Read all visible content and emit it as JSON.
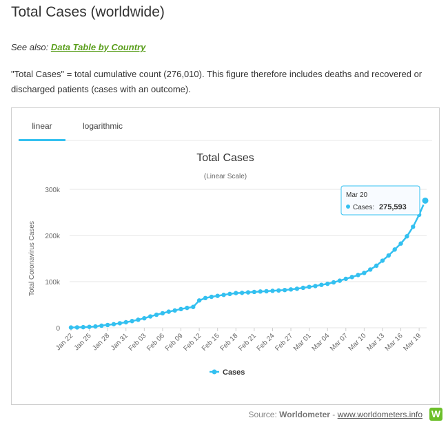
{
  "page": {
    "title": "Total Cases (worldwide)",
    "see_also_prefix": "See also:",
    "see_also_link": "Data Table by Country",
    "description": "\"Total Cases\" = total cumulative count (276,010). This figure therefore includes deaths and recovered or discharged patients (cases with an outcome)."
  },
  "tabs": [
    {
      "label": "linear",
      "active": true
    },
    {
      "label": "logarithmic",
      "active": false
    }
  ],
  "source": {
    "prefix": "Source:",
    "name": "Worldometer",
    "separator": "-",
    "link": "www.worldometers.info",
    "logo_letter": "W"
  },
  "colors": {
    "series": "#33c0f0",
    "link_green": "#5a9e1c",
    "grid": "#e6e6e6"
  },
  "chart_data": {
    "type": "line",
    "title": "Total Cases",
    "subtitle": "(Linear Scale)",
    "ylabel": "Total Coronavirus Cases",
    "xlabel": "",
    "ylim": [
      0,
      300000
    ],
    "yticks": [
      0,
      100000,
      200000,
      300000
    ],
    "ytick_labels": [
      "0",
      "100k",
      "200k",
      "300k"
    ],
    "grid": true,
    "legend_position": "bottom-center",
    "x_tick_labels": [
      "Jan 22",
      "Jan 25",
      "Jan 28",
      "Jan 31",
      "Feb 03",
      "Feb 06",
      "Feb 09",
      "Feb 12",
      "Feb 15",
      "Feb 18",
      "Feb 21",
      "Feb 24",
      "Feb 27",
      "Mar 01",
      "Mar 04",
      "Mar 07",
      "Mar 10",
      "Mar 13",
      "Mar 16",
      "Mar 19"
    ],
    "x": [
      "Jan 22",
      "Jan 23",
      "Jan 24",
      "Jan 25",
      "Jan 26",
      "Jan 27",
      "Jan 28",
      "Jan 29",
      "Jan 30",
      "Jan 31",
      "Feb 01",
      "Feb 02",
      "Feb 03",
      "Feb 04",
      "Feb 05",
      "Feb 06",
      "Feb 07",
      "Feb 08",
      "Feb 09",
      "Feb 10",
      "Feb 11",
      "Feb 12",
      "Feb 13",
      "Feb 14",
      "Feb 15",
      "Feb 16",
      "Feb 17",
      "Feb 18",
      "Feb 19",
      "Feb 20",
      "Feb 21",
      "Feb 22",
      "Feb 23",
      "Feb 24",
      "Feb 25",
      "Feb 26",
      "Feb 27",
      "Feb 28",
      "Feb 29",
      "Mar 01",
      "Mar 02",
      "Mar 03",
      "Mar 04",
      "Mar 05",
      "Mar 06",
      "Mar 07",
      "Mar 08",
      "Mar 09",
      "Mar 10",
      "Mar 11",
      "Mar 12",
      "Mar 13",
      "Mar 14",
      "Mar 15",
      "Mar 16",
      "Mar 17",
      "Mar 18",
      "Mar 19",
      "Mar 20"
    ],
    "series": [
      {
        "name": "Cases",
        "values": [
          580,
          845,
          1317,
          2015,
          2800,
          4581,
          6058,
          7813,
          9821,
          11948,
          14551,
          17389,
          20628,
          24553,
          28276,
          31439,
          34876,
          37552,
          40553,
          43099,
          45134,
          59287,
          64438,
          67100,
          69197,
          71329,
          73332,
          75184,
          75700,
          76677,
          77673,
          78651,
          79205,
          80087,
          80828,
          81820,
          83112,
          84615,
          86604,
          88585,
          90443,
          93016,
          95314,
          98425,
          102050,
          106099,
          109991,
          114381,
          118948,
          126214,
          134576,
          145483,
          156653,
          169593,
          182490,
          198238,
          218822,
          244933,
          275593
        ]
      }
    ],
    "tooltip": {
      "x": "Mar 20",
      "series": "Cases",
      "value_label": "275,593"
    }
  }
}
